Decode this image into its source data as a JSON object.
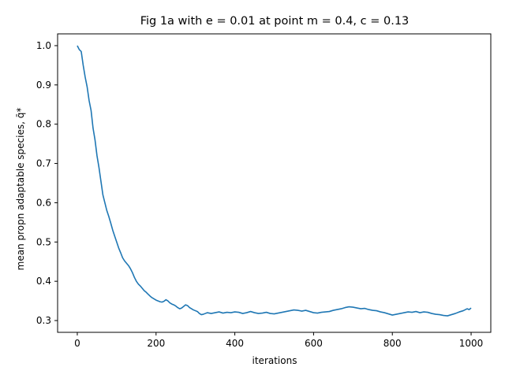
{
  "chart_data": {
    "type": "line",
    "title": "Fig 1a with e = 0.01 at point m = 0.4, c = 0.13",
    "xlabel": "iterations",
    "ylabel": "mean propn adaptable species, q̄*",
    "xlim": [
      -50,
      1050
    ],
    "ylim": [
      0.27,
      1.03
    ],
    "xticks": [
      0,
      200,
      400,
      600,
      800,
      1000
    ],
    "xtick_labels": [
      "0",
      "200",
      "400",
      "600",
      "800",
      "1000"
    ],
    "yticks": [
      0.3,
      0.4,
      0.5,
      0.6,
      0.7,
      0.8,
      0.9,
      1.0
    ],
    "ytick_labels": [
      "0.3",
      "0.4",
      "0.5",
      "0.6",
      "0.7",
      "0.8",
      "0.9",
      "1.0"
    ],
    "grid": false,
    "line_color": "#1f77b4",
    "series": [
      {
        "x": [
          0,
          5,
          10,
          15,
          20,
          25,
          30,
          35,
          40,
          45,
          50,
          55,
          60,
          65,
          70,
          75,
          80,
          85,
          90,
          95,
          100,
          105,
          110,
          115,
          120,
          125,
          130,
          135,
          140,
          145,
          150,
          155,
          160,
          165,
          170,
          175,
          180,
          185,
          190,
          195,
          200,
          205,
          210,
          215,
          220,
          225,
          230,
          235,
          240,
          245,
          250,
          255,
          260,
          265,
          270,
          275,
          280,
          285,
          290,
          295,
          300,
          305,
          310,
          315,
          320,
          325,
          330,
          340,
          350,
          360,
          370,
          380,
          390,
          400,
          410,
          420,
          430,
          440,
          450,
          460,
          470,
          480,
          490,
          500,
          510,
          520,
          530,
          540,
          550,
          560,
          570,
          580,
          590,
          600,
          610,
          620,
          630,
          640,
          650,
          660,
          670,
          680,
          690,
          700,
          710,
          720,
          730,
          740,
          750,
          760,
          770,
          780,
          790,
          800,
          810,
          820,
          830,
          840,
          850,
          860,
          870,
          880,
          890,
          900,
          910,
          920,
          930,
          940,
          950,
          960,
          970,
          980,
          990,
          995,
          1000
        ],
        "y": [
          1.0,
          0.99,
          0.985,
          0.95,
          0.92,
          0.895,
          0.86,
          0.835,
          0.79,
          0.76,
          0.72,
          0.69,
          0.655,
          0.62,
          0.6,
          0.58,
          0.565,
          0.548,
          0.53,
          0.515,
          0.5,
          0.485,
          0.473,
          0.46,
          0.452,
          0.446,
          0.44,
          0.432,
          0.422,
          0.41,
          0.4,
          0.393,
          0.388,
          0.382,
          0.376,
          0.372,
          0.367,
          0.362,
          0.358,
          0.355,
          0.352,
          0.35,
          0.348,
          0.347,
          0.349,
          0.353,
          0.35,
          0.345,
          0.342,
          0.34,
          0.337,
          0.333,
          0.33,
          0.332,
          0.336,
          0.34,
          0.338,
          0.333,
          0.33,
          0.327,
          0.325,
          0.323,
          0.318,
          0.315,
          0.316,
          0.318,
          0.32,
          0.318,
          0.32,
          0.322,
          0.319,
          0.321,
          0.32,
          0.322,
          0.321,
          0.318,
          0.32,
          0.323,
          0.32,
          0.318,
          0.319,
          0.321,
          0.318,
          0.317,
          0.319,
          0.321,
          0.323,
          0.325,
          0.327,
          0.326,
          0.324,
          0.326,
          0.323,
          0.32,
          0.319,
          0.321,
          0.322,
          0.323,
          0.326,
          0.328,
          0.33,
          0.333,
          0.335,
          0.334,
          0.332,
          0.33,
          0.331,
          0.328,
          0.326,
          0.325,
          0.322,
          0.32,
          0.317,
          0.314,
          0.316,
          0.318,
          0.32,
          0.322,
          0.321,
          0.323,
          0.32,
          0.322,
          0.321,
          0.318,
          0.316,
          0.315,
          0.313,
          0.312,
          0.315,
          0.318,
          0.322,
          0.325,
          0.33,
          0.328,
          0.332
        ]
      }
    ]
  }
}
